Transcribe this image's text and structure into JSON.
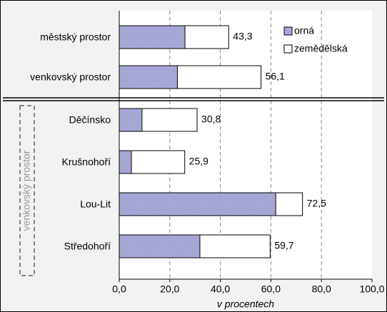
{
  "chart_data": {
    "type": "bar",
    "orientation": "horizontal",
    "categories": [
      "městský prostor",
      "venkovský prostor",
      "Děčínsko",
      "Krušnohoří",
      "Lou-Lit",
      "Středohoří"
    ],
    "series": [
      {
        "name": "orná",
        "color": "#b4b4e0",
        "values": [
          26.0,
          23.0,
          9.0,
          4.8,
          61.9,
          31.9
        ]
      },
      {
        "name": "zemědělská",
        "color": "#ffffff",
        "values": [
          43.3,
          56.1,
          30.8,
          25.9,
          72.5,
          59.7
        ],
        "value_labels": [
          "43,3",
          "56,1",
          "30,8",
          "25,9",
          "72,5",
          "59,7"
        ]
      }
    ],
    "xlim": [
      0,
      100
    ],
    "xticks": [
      {
        "value": 0,
        "label": "0,0"
      },
      {
        "value": 20,
        "label": "20,0"
      },
      {
        "value": 40,
        "label": "40,0"
      },
      {
        "value": 60,
        "label": "60,0"
      },
      {
        "value": 80,
        "label": "80,0"
      },
      {
        "value": 100,
        "label": "100,0"
      }
    ],
    "xlabel": "v procentech",
    "annotation": "venkovský prostor",
    "grid": true,
    "legend": "top-right"
  }
}
